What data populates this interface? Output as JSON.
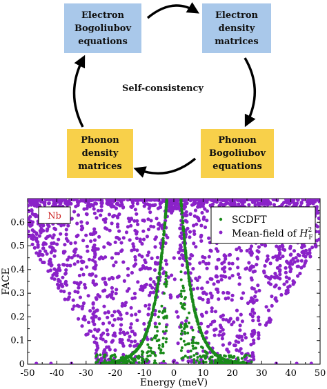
{
  "diagram": {
    "center_label": "Self-consistency",
    "boxes": {
      "electron_bogoliubov": [
        "Electron",
        "Bogoliubov",
        "equations"
      ],
      "electron_density": [
        "Electron",
        "density",
        "matrices"
      ],
      "phonon_bogoliubov": [
        "Phonon",
        "Bogoliubov",
        "equations"
      ],
      "phonon_density": [
        "Phonon",
        "density",
        "matrices"
      ]
    },
    "colors": {
      "electron": "#a9c8ea",
      "phonon": "#f8d04a"
    }
  },
  "chart_data": {
    "type": "scatter",
    "xlabel": "Energy (meV)",
    "ylabel": "FACE",
    "xlim": [
      -50,
      50
    ],
    "ylim": [
      0,
      0.7
    ],
    "x_ticks": [
      "-50",
      "-40",
      "-30",
      "-20",
      "-10",
      "0",
      "10",
      "20",
      "30",
      "40",
      "50"
    ],
    "y_ticks": [
      "0",
      "0.1",
      "0.2",
      "0.3",
      "0.4",
      "0.5",
      "0.6"
    ],
    "annotation": "Nb",
    "legend_position": "top-right",
    "series": [
      {
        "name": "SCDFT",
        "color": "#1a8a1a",
        "description": "dense V-shaped band",
        "samples": [
          [
            -2.5,
            0.69
          ],
          [
            -3,
            0.6
          ],
          [
            -4,
            0.5
          ],
          [
            -5,
            0.4
          ],
          [
            -6,
            0.3
          ],
          [
            -7,
            0.2
          ],
          [
            -9,
            0.1
          ],
          [
            -12,
            0.05
          ],
          [
            2.5,
            0.69
          ],
          [
            3,
            0.6
          ],
          [
            4,
            0.5
          ],
          [
            5,
            0.4
          ],
          [
            6,
            0.3
          ],
          [
            7,
            0.2
          ],
          [
            9,
            0.1
          ],
          [
            12,
            0.05
          ]
        ]
      },
      {
        "name": "Mean-field of",
        "color": "#8a22c8",
        "math_symbol": "H",
        "math_sup": "2",
        "math_sub": "F",
        "description": "scattered points, dense near top, bounded near |E| = 27 meV"
      }
    ]
  }
}
